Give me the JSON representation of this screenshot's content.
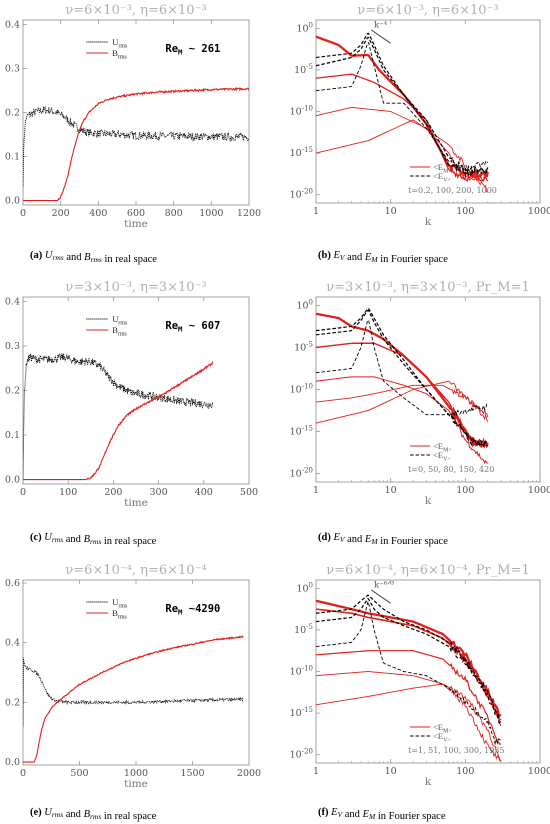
{
  "colors": {
    "u": "#000000",
    "b": "#e0201c",
    "axis": "#9a9a9a",
    "title": "#b0b0b0"
  },
  "chart_data": [
    {
      "id": "a",
      "type": "line",
      "title": "ν=6×10⁻³, η=6×10⁻³",
      "xlabel": "time",
      "ylabel": "",
      "xlim": [
        0,
        1200
      ],
      "ylim": [
        -0.01,
        0.41
      ],
      "xticks": [
        0,
        200,
        400,
        600,
        800,
        1000,
        1200
      ],
      "yticks": [
        0.0,
        0.1,
        0.2,
        0.3,
        0.4
      ],
      "legend": {
        "position": "top-center",
        "u": "U_rms",
        "b": "B_rms"
      },
      "annotation": "Re_M ~ 261",
      "caption": {
        "tag": "(a)",
        "text": " U_rms and B_rms in real space"
      },
      "series": [
        {
          "name": "U_rms",
          "style": "dotted",
          "noise": 0.009,
          "x": [
            0,
            5,
            15,
            30,
            60,
            100,
            140,
            180,
            220,
            260,
            300,
            340,
            400,
            500,
            600,
            800,
            1000,
            1200
          ],
          "y": [
            0.04,
            0.14,
            0.185,
            0.195,
            0.2,
            0.205,
            0.205,
            0.2,
            0.19,
            0.175,
            0.162,
            0.155,
            0.152,
            0.15,
            0.148,
            0.146,
            0.145,
            0.144
          ]
        },
        {
          "name": "B_rms",
          "style": "solid",
          "noise": 0.002,
          "x": [
            0,
            180,
            200,
            220,
            240,
            260,
            280,
            300,
            320,
            350,
            400,
            450,
            500,
            600,
            700,
            800,
            900,
            1000,
            1100,
            1200
          ],
          "y": [
            0.0,
            0.0,
            0.008,
            0.03,
            0.06,
            0.1,
            0.13,
            0.16,
            0.18,
            0.2,
            0.22,
            0.23,
            0.235,
            0.242,
            0.246,
            0.248,
            0.25,
            0.252,
            0.253,
            0.254
          ]
        }
      ]
    },
    {
      "id": "b",
      "type": "line",
      "scale": "loglog",
      "title": "ν=6×10⁻³, η=6×10⁻³",
      "xlabel": "k",
      "ylabel": "",
      "xlim": [
        1,
        1000
      ],
      "ylim_exp": [
        -21,
        1
      ],
      "xticks": [
        1,
        10,
        100,
        1000
      ],
      "yticks_exp": [
        0,
        -5,
        -10,
        -15,
        -20
      ],
      "legend": {
        "position": "bottom-right",
        "m": "<E_M>",
        "v": "<E_V>"
      },
      "slope_label": "k⁻⁴",
      "times_label": "t=0.2, 100, 200, 1000",
      "caption": {
        "tag": "(b)",
        "text": " E_V and E_M in Fourier space"
      },
      "kmax": 200,
      "series": [
        {
          "name": "",
          "kind": "M",
          "width": 0.9,
          "k": [
            1,
            5,
            20,
            60,
            100,
            200
          ],
          "logE": [
            -15,
            -13.5,
            -11,
            -14,
            -16.5,
            -19.5
          ]
        },
        {
          "name": "",
          "kind": "M",
          "width": 0.9,
          "k": [
            1,
            3,
            10,
            30,
            60,
            100,
            200
          ],
          "logE": [
            -10.5,
            -9.5,
            -10,
            -12,
            -15,
            -18,
            -18
          ]
        },
        {
          "name": "",
          "kind": "M",
          "width": 1.3,
          "k": [
            1,
            3,
            6,
            15,
            30,
            60,
            100,
            200
          ],
          "logE": [
            -6,
            -5.5,
            -6.5,
            -8.5,
            -11,
            -17,
            -18,
            -18
          ]
        },
        {
          "name": "",
          "kind": "M",
          "width": 2.3,
          "k": [
            1,
            2,
            3,
            5,
            7,
            15,
            30,
            60,
            100,
            200
          ],
          "logE": [
            -1,
            -2,
            -3.3,
            -3.2,
            -5,
            -8,
            -11.5,
            -16.5,
            -17.5,
            -17.5
          ]
        },
        {
          "name": "",
          "kind": "V",
          "width": 0.9,
          "k": [
            1,
            3,
            4,
            5,
            6,
            8,
            15,
            30,
            60,
            100,
            200
          ],
          "logE": [
            -7.5,
            -7,
            -4.5,
            -1.5,
            -4.5,
            -9,
            -9,
            -12,
            -16,
            -17,
            -16
          ]
        },
        {
          "name": "",
          "kind": "V",
          "width": 1.2,
          "k": [
            1,
            3,
            4,
            5,
            6,
            8,
            15,
            30,
            60,
            100,
            200
          ],
          "logE": [
            -4.5,
            -3.5,
            -2.5,
            -1.0,
            -2.5,
            -5,
            -8,
            -11,
            -15.5,
            -17,
            -17
          ]
        },
        {
          "name": "",
          "kind": "V",
          "width": 1.2,
          "k": [
            1,
            3,
            4,
            5,
            6,
            8,
            15,
            30,
            60,
            100,
            200
          ],
          "logE": [
            -3.5,
            -3,
            -2,
            -0.5,
            -2,
            -4.5,
            -8,
            -11.5,
            -16.5,
            -17.5,
            -17
          ]
        }
      ]
    },
    {
      "id": "c",
      "type": "line",
      "title": "ν=3×10⁻³, η=3×10⁻³",
      "xlabel": "time",
      "ylabel": "",
      "xlim": [
        0,
        500
      ],
      "ylim": [
        -0.01,
        0.41
      ],
      "xticks": [
        0,
        100,
        200,
        300,
        400,
        500
      ],
      "yticks": [
        0.0,
        0.1,
        0.2,
        0.3,
        0.4
      ],
      "legend": {
        "position": "top-center",
        "u": "U_rms",
        "b": "B_rms"
      },
      "annotation": "Re_M ~ 607",
      "caption": {
        "tag": "(c)",
        "text": " U_rms and B_rms in real space"
      },
      "series": [
        {
          "name": "U_rms",
          "style": "dotted",
          "noise": 0.009,
          "x": [
            0,
            3,
            8,
            15,
            30,
            60,
            90,
            120,
            150,
            170,
            190,
            210,
            240,
            270,
            300,
            350,
            400,
            420
          ],
          "y": [
            0.0,
            0.2,
            0.265,
            0.275,
            0.27,
            0.27,
            0.275,
            0.265,
            0.265,
            0.255,
            0.23,
            0.21,
            0.195,
            0.19,
            0.185,
            0.175,
            0.17,
            0.168
          ]
        },
        {
          "name": "B_rms",
          "style": "solid",
          "noise": 0.002,
          "x": [
            0,
            140,
            150,
            160,
            170,
            180,
            190,
            200,
            210,
            230,
            260,
            300,
            340,
            380,
            420
          ],
          "y": [
            0.0,
            0.0,
            0.004,
            0.015,
            0.03,
            0.055,
            0.08,
            0.1,
            0.12,
            0.145,
            0.165,
            0.185,
            0.21,
            0.235,
            0.262
          ]
        }
      ]
    },
    {
      "id": "d",
      "type": "line",
      "scale": "loglog",
      "title": "ν=3×10⁻³, η=3×10⁻³, Pr_M=1",
      "xlabel": "k",
      "ylabel": "",
      "xlim": [
        1,
        1000
      ],
      "ylim_exp": [
        -21,
        1
      ],
      "xticks": [
        1,
        10,
        100,
        1000
      ],
      "yticks_exp": [
        0,
        -5,
        -10,
        -15,
        -20
      ],
      "legend": {
        "position": "bottom-right",
        "m": "<E_M>",
        "v": "<E_V>"
      },
      "slope_label": "",
      "times_label": "t=0, 50, 80, 150, 420",
      "caption": {
        "tag": "(d)",
        "text": " E_V and E_M in Fourier space"
      },
      "kmax": 200,
      "series": [
        {
          "name": "",
          "kind": "M",
          "width": 0.9,
          "k": [
            1,
            5,
            20,
            60,
            100,
            200
          ],
          "logE": [
            -14,
            -12.5,
            -10,
            -9,
            -11,
            -13
          ]
        },
        {
          "name": "",
          "kind": "M",
          "width": 0.9,
          "k": [
            1,
            3,
            6,
            20,
            50,
            100,
            200
          ],
          "logE": [
            -11.5,
            -11,
            -10.5,
            -9.5,
            -9.5,
            -11,
            -13.5
          ]
        },
        {
          "name": "",
          "kind": "M",
          "width": 1.0,
          "k": [
            1,
            3,
            6,
            15,
            30,
            60,
            100,
            200
          ],
          "logE": [
            -9,
            -8.5,
            -8.5,
            -9.5,
            -10.5,
            -12.5,
            -16,
            -19
          ]
        },
        {
          "name": "",
          "kind": "M",
          "width": 1.4,
          "k": [
            1,
            3,
            6,
            15,
            30,
            60,
            100,
            120,
            200
          ],
          "logE": [
            -5,
            -4.5,
            -4.5,
            -6,
            -8.5,
            -11.5,
            -15,
            -16,
            -16.5
          ]
        },
        {
          "name": "",
          "kind": "M",
          "width": 2.3,
          "k": [
            1,
            2,
            3,
            5,
            8,
            15,
            30,
            60,
            100,
            120,
            200
          ],
          "logE": [
            -1,
            -1.5,
            -2.5,
            -3,
            -4,
            -6,
            -8.5,
            -12,
            -15,
            -16.3,
            -16.5
          ]
        },
        {
          "name": "",
          "kind": "V",
          "width": 0.9,
          "k": [
            1,
            3,
            4,
            5,
            6,
            8,
            15,
            30,
            60,
            100,
            200
          ],
          "logE": [
            -8,
            -7.5,
            -5,
            -1.5,
            -5,
            -9,
            -11,
            -13,
            -13,
            -12.5,
            -12
          ]
        },
        {
          "name": "",
          "kind": "V",
          "width": 1.2,
          "k": [
            1,
            3,
            4,
            5,
            6,
            8,
            15,
            30,
            60,
            100,
            120,
            200
          ],
          "logE": [
            -3.5,
            -3,
            -1.8,
            -0.5,
            -2,
            -4,
            -7,
            -10,
            -13,
            -15,
            -16.2,
            -16.5
          ]
        },
        {
          "name": "",
          "kind": "V",
          "width": 1.2,
          "k": [
            1,
            3,
            4,
            5,
            6,
            8,
            15,
            30,
            60,
            100,
            120,
            200
          ],
          "logE": [
            -3,
            -2.5,
            -1.5,
            -0.3,
            -1.5,
            -3.5,
            -6.5,
            -10,
            -13,
            -15,
            -16.3,
            -16.5
          ]
        }
      ]
    },
    {
      "id": "e",
      "type": "line",
      "title": "ν=6×10⁻⁴, η=6×10⁻⁴",
      "xlabel": "time",
      "ylabel": "",
      "xlim": [
        0,
        2000
      ],
      "ylim": [
        -0.01,
        0.61
      ],
      "xticks": [
        0,
        500,
        1000,
        1500,
        2000
      ],
      "yticks": [
        0.0,
        0.2,
        0.4,
        0.6
      ],
      "legend": {
        "position": "top-center",
        "u": "U_rms",
        "b": "B_rms"
      },
      "annotation": "Re_M ~4290",
      "caption": {
        "tag": "(e)",
        "text": " U_rms and B_rms in real space"
      },
      "series": [
        {
          "name": "U_rms",
          "style": "dotted",
          "noise": 0.005,
          "x": [
            0,
            3,
            10,
            30,
            60,
            100,
            140,
            180,
            220,
            260,
            300,
            400,
            600,
            800,
            1000,
            1400,
            1950
          ],
          "y": [
            0.12,
            0.35,
            0.33,
            0.315,
            0.31,
            0.305,
            0.29,
            0.26,
            0.225,
            0.21,
            0.205,
            0.2,
            0.2,
            0.2,
            0.2,
            0.205,
            0.21
          ]
        },
        {
          "name": "B_rms",
          "style": "solid",
          "noise": 0.002,
          "x": [
            0,
            100,
            120,
            140,
            160,
            180,
            200,
            250,
            300,
            400,
            500,
            700,
            900,
            1100,
            1300,
            1500,
            1700,
            1950
          ],
          "y": [
            0.0,
            0.0,
            0.02,
            0.06,
            0.1,
            0.13,
            0.15,
            0.18,
            0.2,
            0.23,
            0.26,
            0.3,
            0.335,
            0.36,
            0.38,
            0.395,
            0.41,
            0.42
          ]
        }
      ]
    },
    {
      "id": "f",
      "type": "line",
      "scale": "loglog",
      "title": "ν=6×10⁻⁴, η=6×10⁻⁴, Pr_M=1",
      "xlabel": "k",
      "ylabel": "",
      "xlim": [
        1,
        1000
      ],
      "ylim_exp": [
        -21,
        1
      ],
      "xticks": [
        1,
        10,
        100,
        1000
      ],
      "yticks_exp": [
        0,
        -5,
        -10,
        -15,
        -20
      ],
      "legend": {
        "position": "bottom-right",
        "m": "<E_M>",
        "v": "<E_V>"
      },
      "slope_label": "k⁻⁶ᐟ³",
      "times_label": "t=1, 51, 100, 300, 1935",
      "caption": {
        "tag": "(f)",
        "text": " E_V and E_M in Fourier space"
      },
      "kmax": 300,
      "series": [
        {
          "name": "",
          "kind": "M",
          "width": 0.9,
          "k": [
            1,
            5,
            20,
            50,
            100,
            200,
            300
          ],
          "logE": [
            -14,
            -13,
            -12,
            -11.5,
            -13,
            -17,
            -21
          ]
        },
        {
          "name": "",
          "kind": "M",
          "width": 0.9,
          "k": [
            1,
            5,
            20,
            50,
            100,
            200,
            300
          ],
          "logE": [
            -10.5,
            -10,
            -10.5,
            -11.5,
            -14,
            -19,
            -21
          ]
        },
        {
          "name": "",
          "kind": "M",
          "width": 1.2,
          "k": [
            1,
            5,
            20,
            50,
            100,
            200,
            300
          ],
          "logE": [
            -8,
            -7.5,
            -7.5,
            -8.5,
            -11,
            -15.5,
            -19
          ]
        },
        {
          "name": "",
          "kind": "M",
          "width": 1.6,
          "k": [
            1,
            3,
            5,
            20,
            50,
            100,
            200,
            300
          ],
          "logE": [
            -2.5,
            -3,
            -3.5,
            -4.5,
            -6,
            -8.5,
            -13,
            -16
          ]
        },
        {
          "name": "",
          "kind": "M",
          "width": 2.3,
          "k": [
            1,
            3,
            5,
            20,
            50,
            100,
            200,
            300
          ],
          "logE": [
            -1.5,
            -2.5,
            -3,
            -4,
            -5.5,
            -8,
            -12.5,
            -15.5
          ]
        },
        {
          "name": "",
          "kind": "V",
          "width": 0.9,
          "k": [
            1,
            3,
            4,
            5,
            6,
            8,
            15,
            30,
            60,
            100,
            200,
            250,
            300
          ],
          "logE": [
            -7,
            -6.5,
            -5,
            -1.5,
            -5,
            -9,
            -10,
            -10.5,
            -12,
            -13.5,
            -16,
            -18.5,
            -18
          ]
        },
        {
          "name": "",
          "kind": "V",
          "width": 1.2,
          "k": [
            1,
            3,
            4,
            5,
            6,
            8,
            15,
            30,
            60,
            100,
            200,
            300
          ],
          "logE": [
            -4,
            -3.5,
            -2.5,
            -1.2,
            -2.5,
            -3.5,
            -4.5,
            -5.5,
            -7,
            -9,
            -13,
            -16.5
          ]
        },
        {
          "name": "",
          "kind": "V",
          "width": 1.2,
          "k": [
            1,
            3,
            4,
            5,
            6,
            8,
            15,
            30,
            60,
            100,
            200,
            300
          ],
          "logE": [
            -3,
            -2.5,
            -1.5,
            -0.8,
            -1.5,
            -2.5,
            -4,
            -5,
            -6.5,
            -8.5,
            -12.5,
            -16
          ]
        }
      ]
    }
  ]
}
